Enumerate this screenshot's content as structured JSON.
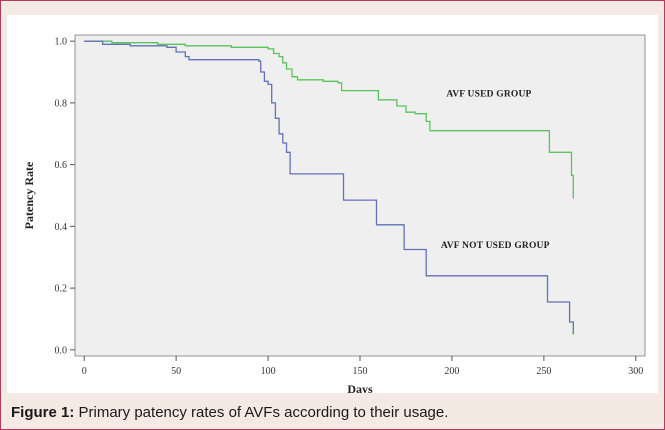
{
  "caption": {
    "label": "Figure 1:",
    "text": " Primary patency rates of AVFs according to their usage."
  },
  "chart_data": {
    "type": "line",
    "step": true,
    "xlabel": "Days",
    "ylabel": "Patency Rate",
    "xlim": [
      -5,
      305
    ],
    "ylim": [
      -0.02,
      1.02
    ],
    "x_ticks": [
      0,
      50,
      100,
      150,
      200,
      250,
      300
    ],
    "y_ticks": [
      0.0,
      0.2,
      0.4,
      0.6,
      0.8,
      1.0
    ],
    "x_tick_labels": [
      "0",
      "50",
      "100",
      "150",
      "200",
      "250",
      "300"
    ],
    "y_tick_labels": [
      "0.0",
      "0.2",
      "0.4",
      "0.6",
      "0.8",
      "1.0"
    ],
    "grid": false,
    "plot_background": "#efefef",
    "series": [
      {
        "name": "AVF USED GROUP",
        "color": "#5cc25c",
        "label_anchor": [
          197,
          0.82
        ],
        "points": [
          [
            0,
            1.0
          ],
          [
            15,
            0.995
          ],
          [
            40,
            0.99
          ],
          [
            55,
            0.985
          ],
          [
            80,
            0.98
          ],
          [
            95,
            0.98
          ],
          [
            100,
            0.975
          ],
          [
            103,
            0.96
          ],
          [
            106,
            0.95
          ],
          [
            108,
            0.93
          ],
          [
            110,
            0.91
          ],
          [
            113,
            0.885
          ],
          [
            116,
            0.875
          ],
          [
            130,
            0.87
          ],
          [
            138,
            0.865
          ],
          [
            140,
            0.84
          ],
          [
            150,
            0.84
          ],
          [
            160,
            0.81
          ],
          [
            170,
            0.79
          ],
          [
            175,
            0.77
          ],
          [
            180,
            0.765
          ],
          [
            186,
            0.74
          ],
          [
            188,
            0.71
          ],
          [
            220,
            0.71
          ],
          [
            240,
            0.71
          ],
          [
            252,
            0.71
          ],
          [
            253,
            0.64
          ],
          [
            264,
            0.64
          ],
          [
            265,
            0.565
          ],
          [
            266,
            0.565
          ],
          [
            266,
            0.49
          ]
        ]
      },
      {
        "name": "AVF NOT USED GROUP",
        "color": "#6272b8",
        "label_anchor": [
          194,
          0.33
        ],
        "points": [
          [
            0,
            1.0
          ],
          [
            10,
            0.99
          ],
          [
            25,
            0.985
          ],
          [
            45,
            0.98
          ],
          [
            50,
            0.965
          ],
          [
            55,
            0.95
          ],
          [
            57,
            0.94
          ],
          [
            80,
            0.94
          ],
          [
            95,
            0.935
          ],
          [
            96,
            0.9
          ],
          [
            98,
            0.87
          ],
          [
            100,
            0.86
          ],
          [
            102,
            0.8
          ],
          [
            104,
            0.75
          ],
          [
            106,
            0.7
          ],
          [
            108,
            0.67
          ],
          [
            110,
            0.64
          ],
          [
            112,
            0.57
          ],
          [
            125,
            0.57
          ],
          [
            140,
            0.57
          ],
          [
            141,
            0.485
          ],
          [
            150,
            0.485
          ],
          [
            158,
            0.485
          ],
          [
            159,
            0.405
          ],
          [
            170,
            0.405
          ],
          [
            174,
            0.325
          ],
          [
            182,
            0.325
          ],
          [
            186,
            0.24
          ],
          [
            220,
            0.24
          ],
          [
            251,
            0.24
          ],
          [
            252,
            0.155
          ],
          [
            263,
            0.155
          ],
          [
            264,
            0.09
          ],
          [
            265,
            0.09
          ],
          [
            266,
            0.05
          ]
        ]
      }
    ]
  }
}
